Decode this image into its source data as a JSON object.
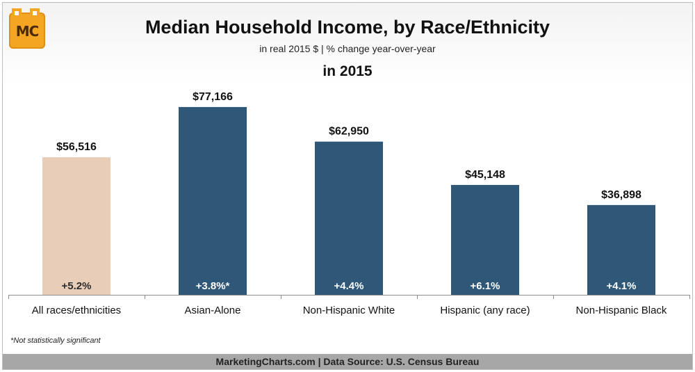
{
  "logo_text": "MC",
  "chart_data": {
    "type": "bar",
    "title": "Median Household Income, by Race/Ethnicity",
    "subtitle": "in real 2015 $ | % change year-over-year",
    "period_label": "in 2015",
    "categories": [
      "All races/ethnicities",
      "Asian-Alone",
      "Non-Hispanic White",
      "Hispanic (any race)",
      "Non-Hispanic Black"
    ],
    "values": [
      56516,
      77166,
      62950,
      45148,
      36898
    ],
    "value_labels": [
      "$56,516",
      "$77,166",
      "$62,950",
      "$45,148",
      "$36,898"
    ],
    "change_labels": [
      "+5.2%",
      "+3.8%*",
      "+4.4%",
      "+6.1%",
      "+4.1%"
    ],
    "colors": [
      "#e8cdb9",
      "#2e5778",
      "#2e5778",
      "#2e5778",
      "#2e5778"
    ],
    "change_label_color": "#ffffff",
    "ylim": [
      0,
      80000
    ],
    "xlabel": "",
    "ylabel": "",
    "grid": false,
    "legend": "none"
  },
  "footnote": "*Not statistically significant",
  "footer": "MarketingCharts.com | Data Source: U.S. Census Bureau"
}
